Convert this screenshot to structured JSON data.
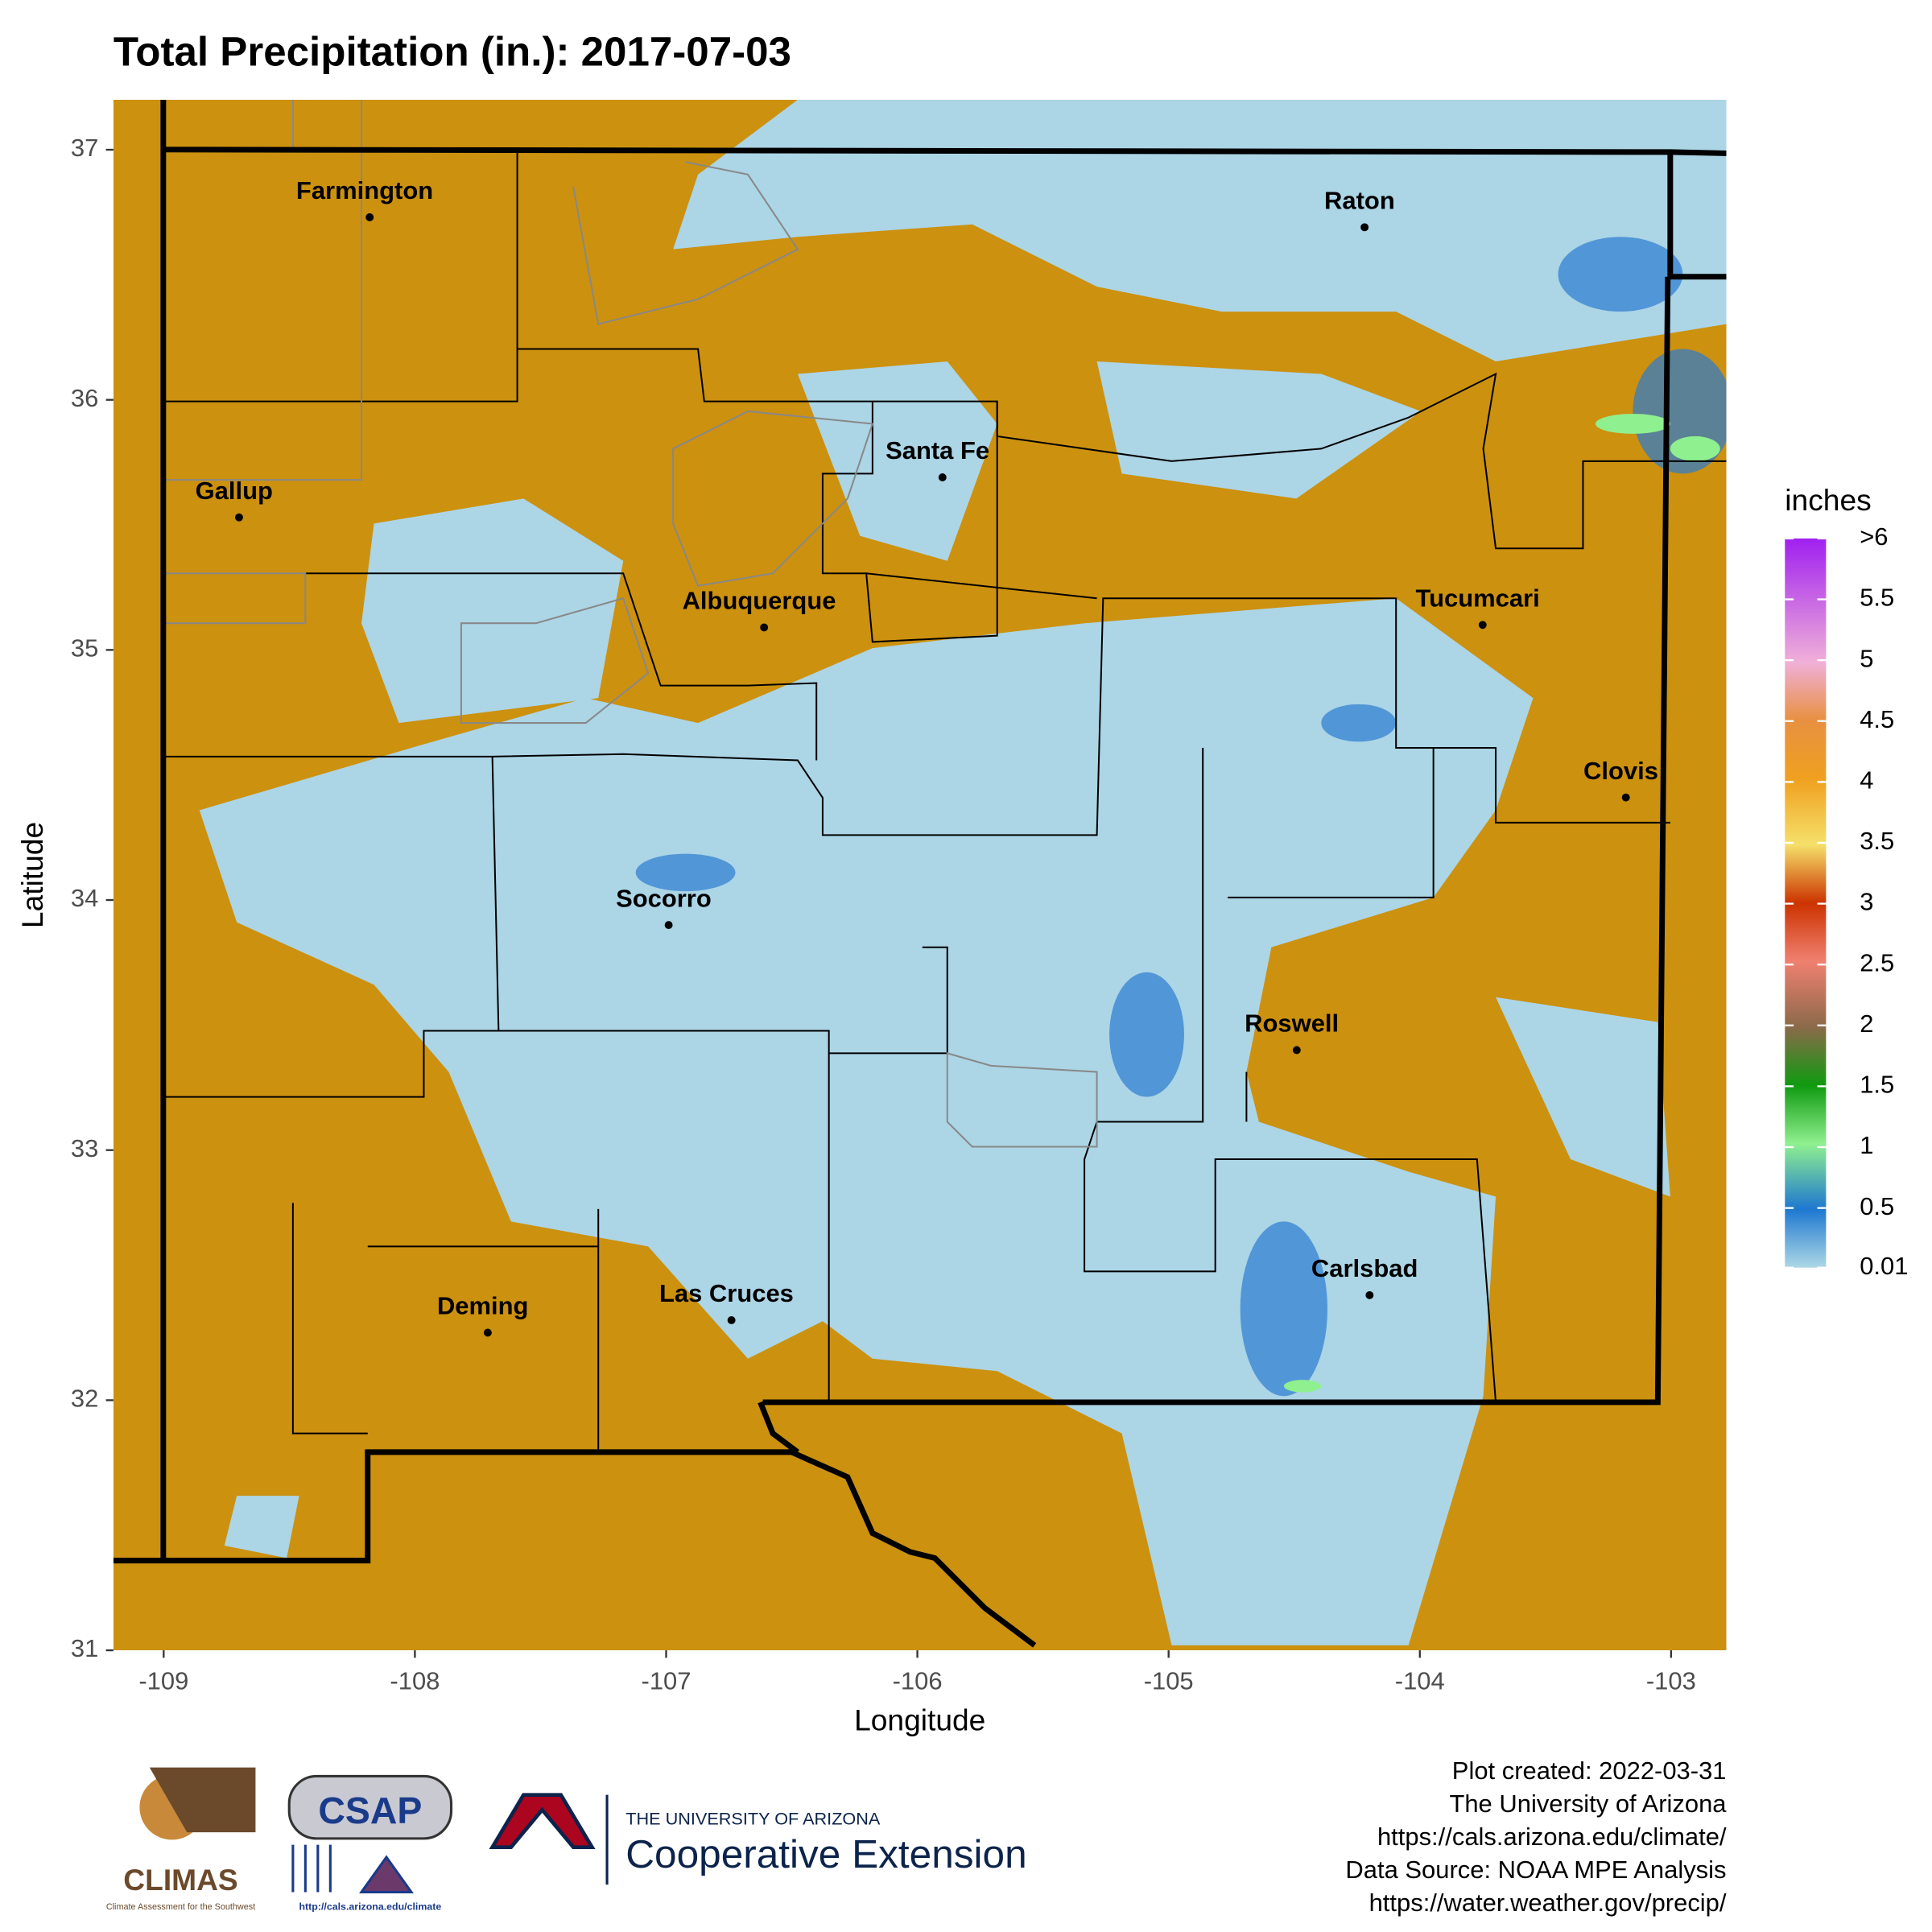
{
  "title": "Total Precipitation (in.): 2017-07-03",
  "x_axis": {
    "label": "Longitude",
    "lim": [
      -109.2,
      -102.78
    ],
    "ticks": [
      -109,
      -108,
      -107,
      -106,
      -105,
      -104,
      -103
    ]
  },
  "y_axis": {
    "label": "Latitude",
    "lim": [
      31,
      37.2
    ],
    "ticks": [
      31,
      32,
      33,
      34,
      35,
      36,
      37
    ]
  },
  "cities": [
    {
      "name": "Farmington",
      "lon": -108.18,
      "lat": 36.73
    },
    {
      "name": "Raton",
      "lon": -104.22,
      "lat": 36.69
    },
    {
      "name": "Santa Fe",
      "lon": -105.9,
      "lat": 35.69
    },
    {
      "name": "Gallup",
      "lon": -108.7,
      "lat": 35.53
    },
    {
      "name": "Albuquerque",
      "lon": -106.61,
      "lat": 35.09
    },
    {
      "name": "Tucumcari",
      "lon": -103.75,
      "lat": 35.1
    },
    {
      "name": "Clovis",
      "lon": -103.18,
      "lat": 34.41
    },
    {
      "name": "Socorro",
      "lon": -106.99,
      "lat": 33.9
    },
    {
      "name": "Roswell",
      "lon": -104.49,
      "lat": 33.4
    },
    {
      "name": "Carlsbad",
      "lon": -104.2,
      "lat": 32.42
    },
    {
      "name": "Deming",
      "lon": -107.71,
      "lat": 32.27
    },
    {
      "name": "Las Cruces",
      "lon": -106.74,
      "lat": 32.32
    }
  ],
  "legend": {
    "title": "inches",
    "lim": [
      0.01,
      6
    ],
    "ticks": [
      0.01,
      0.5,
      1,
      1.5,
      2,
      2.5,
      3,
      3.5,
      4,
      4.5,
      5,
      5.5,
      {
        "value": 6,
        "label": ">6"
      }
    ]
  },
  "credits": [
    "Plot created: 2022-03-31",
    "The University of Arizona",
    "https://cals.arizona.edu/climate/",
    "Data Source: NOAA MPE Analysis",
    "https://water.weather.gov/precip/"
  ],
  "logos": {
    "climas": "CLIMAS",
    "climas_sub": "Climate Assessment for the Southwest",
    "csap": "CSAP",
    "csap_url": "http://cals.arizona.edu/climate",
    "ua": "THE UNIVERSITY OF ARIZONA",
    "extension": "Cooperative Extension"
  }
}
